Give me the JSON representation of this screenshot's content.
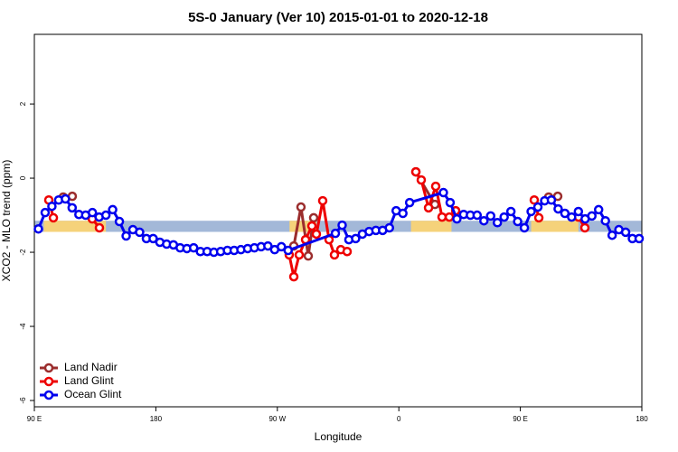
{
  "chart_data": {
    "type": "line",
    "title": "5S-0 January (Ver 10)   2015-01-01 to 2020-12-18",
    "x_label": "Longitude",
    "y_label": "XCO2 - MLO trend (ppm)",
    "xlim": [
      90,
      540
    ],
    "ylim": [
      -6.17,
      3.88
    ],
    "xticks": [
      {
        "value": 90,
        "label": "90 E"
      },
      {
        "value": 180,
        "label": "180"
      },
      {
        "value": 270,
        "label": "90 W"
      },
      {
        "value": 360,
        "label": "0"
      },
      {
        "value": 450,
        "label": "90 E"
      },
      {
        "value": 540,
        "label": "180"
      }
    ],
    "yticks": [
      -6,
      -4,
      -2,
      0,
      2
    ],
    "legend": "bottom-left",
    "band": {
      "range": [
        -1.45,
        -1.15
      ],
      "color": "#a3b8d8",
      "land_color": "#f5d27a",
      "land": [
        [
          97,
          143
        ],
        [
          279,
          299
        ],
        [
          369,
          399
        ],
        [
          458,
          493
        ]
      ]
    },
    "series": [
      {
        "name": "Land Nadir",
        "color": "#9b2d2d",
        "x": [
          111.4,
          118.1,
          null,
          282.2,
          287.5,
          292.9,
          296.9,
          null,
          372.6,
          386.7,
          null,
          471,
          477.7
        ],
        "values": [
          -0.51,
          -0.49,
          null,
          -1.83,
          -0.78,
          -2.1,
          -1.07,
          null,
          0.17,
          -0.71,
          null,
          -0.51,
          -0.49
        ]
      },
      {
        "name": "Land Glint",
        "color": "#ee0000",
        "x": [
          100.7,
          104.1,
          null,
          132.9,
          138.2,
          null,
          278.8,
          282.2,
          286.2,
          290.9,
          295.6,
          298.9,
          303.6,
          308.3,
          312.3,
          317,
          321.7,
          null,
          372.6,
          376.6,
          382,
          387.3,
          392,
          397.4,
          402.1,
          null,
          460.3,
          463.7,
          null,
          493.1,
          497.8
        ],
        "values": [
          -0.59,
          -1.07,
          null,
          -1.1,
          -1.34,
          null,
          -2.07,
          -2.66,
          -2.07,
          -1.66,
          -1.29,
          -1.51,
          -0.61,
          -1.66,
          -2.07,
          -1.93,
          -1.98,
          null,
          0.17,
          -0.05,
          -0.8,
          -0.22,
          -1.05,
          -1.05,
          -0.88,
          null,
          -0.59,
          -1.07,
          null,
          -1.05,
          -1.34
        ]
      },
      {
        "name": "Ocean Glint",
        "color": "#0000ee",
        "x": [
          93,
          98,
          103,
          108,
          113,
          118,
          123,
          128,
          133,
          138,
          143,
          148,
          153,
          158,
          163,
          168,
          173,
          178,
          183,
          188,
          193,
          198,
          203,
          208,
          213,
          218,
          223,
          228,
          233,
          238,
          243,
          248,
          253,
          258,
          263,
          268,
          273,
          278,
          313,
          318,
          323,
          328,
          333,
          338,
          343,
          348,
          353,
          358,
          363,
          368,
          393,
          398,
          403,
          408,
          413,
          418,
          423,
          428,
          433,
          438,
          443,
          448,
          453,
          458,
          463,
          468,
          473,
          478,
          483,
          488,
          493,
          498,
          503,
          508,
          513,
          518,
          523,
          528,
          533,
          538
        ],
        "values": [
          -1.37,
          -0.93,
          -0.76,
          -0.59,
          -0.56,
          -0.8,
          -0.98,
          -1.0,
          -0.93,
          -1.05,
          -1.0,
          -0.85,
          -1.17,
          -1.56,
          -1.39,
          -1.46,
          -1.63,
          -1.63,
          -1.73,
          -1.78,
          -1.8,
          -1.88,
          -1.9,
          -1.88,
          -1.98,
          -1.98,
          -2.0,
          -1.98,
          -1.95,
          -1.95,
          -1.93,
          -1.9,
          -1.88,
          -1.85,
          -1.83,
          -1.93,
          -1.85,
          -1.95,
          -1.49,
          -1.27,
          -1.66,
          -1.63,
          -1.51,
          -1.44,
          -1.41,
          -1.41,
          -1.34,
          -0.88,
          -0.95,
          -0.66,
          -0.39,
          -0.66,
          -1.1,
          -0.98,
          -1.0,
          -1.0,
          -1.15,
          -1.02,
          -1.2,
          -1.05,
          -0.9,
          -1.17,
          -1.34,
          -0.9,
          -0.78,
          -0.61,
          -0.59,
          -0.83,
          -0.95,
          -1.05,
          -0.9,
          -1.1,
          -1.02,
          -0.85,
          -1.15,
          -1.54,
          -1.39,
          -1.46,
          -1.63,
          -1.63
        ]
      }
    ]
  }
}
